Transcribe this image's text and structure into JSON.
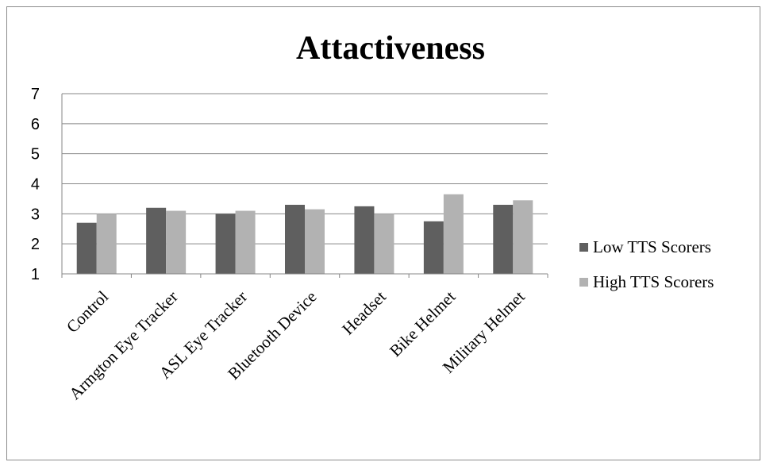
{
  "chart_data": {
    "type": "bar",
    "title": "Attactiveness",
    "xlabel": "",
    "ylabel": "",
    "ylim": [
      1,
      7
    ],
    "yticks": [
      "1",
      "2",
      "3",
      "4",
      "5",
      "6",
      "7"
    ],
    "grid": true,
    "legend_position": "right",
    "categories": [
      "Control",
      "Armgton Eye Tracker",
      "ASL Eye Tracker",
      "Bluetooth Device",
      "Headset",
      "Bike Helmet",
      "Military Helmet"
    ],
    "series": [
      {
        "name": "Low TTS Scorers",
        "color": "#5f5f5f",
        "values": [
          2.7,
          3.2,
          3.0,
          3.3,
          3.25,
          2.75,
          3.3
        ]
      },
      {
        "name": "High TTS Scorers",
        "color": "#b2b2b2",
        "values": [
          3.0,
          3.1,
          3.1,
          3.15,
          3.0,
          3.65,
          3.45
        ]
      }
    ]
  }
}
